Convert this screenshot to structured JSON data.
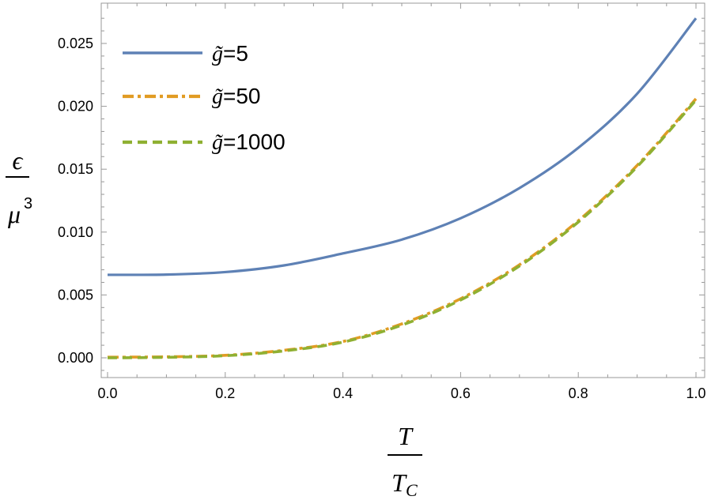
{
  "chart_data": {
    "type": "line",
    "xlabel": {
      "numerator": "T",
      "denominator_main": "T",
      "denominator_sub": "C"
    },
    "ylabel": {
      "numerator": "ϵ",
      "denominator_main": "μ",
      "denominator_sup": "3"
    },
    "xlim": [
      0.0,
      1.0
    ],
    "ylim": [
      -0.0015,
      0.0275
    ],
    "xticks": [
      "0.0",
      "0.2",
      "0.4",
      "0.6",
      "0.8",
      "1.0"
    ],
    "yticks": [
      "0.000",
      "0.005",
      "0.010",
      "0.015",
      "0.020",
      "0.025"
    ],
    "legend_position": "top-left",
    "series": [
      {
        "name_symbol": "g̃",
        "name_value": "=5",
        "color": "#5e81b5",
        "style": "solid",
        "x": [
          0.0,
          0.1,
          0.2,
          0.3,
          0.4,
          0.5,
          0.6,
          0.7,
          0.8,
          0.9,
          1.0
        ],
        "y": [
          0.0066,
          0.00662,
          0.00682,
          0.00735,
          0.0083,
          0.0094,
          0.0111,
          0.0135,
          0.0167,
          0.021,
          0.027
        ]
      },
      {
        "name_symbol": "g̃",
        "name_value": "=50",
        "color": "#e19c24",
        "style": "dashdot",
        "x": [
          0.0,
          0.1,
          0.2,
          0.3,
          0.4,
          0.5,
          0.6,
          0.7,
          0.8,
          0.9,
          1.0
        ],
        "y": [
          5e-05,
          8e-05,
          0.0002,
          0.0006,
          0.0013,
          0.0027,
          0.0047,
          0.0074,
          0.0109,
          0.0153,
          0.0206
        ]
      },
      {
        "name_symbol": "g̃",
        "name_value": "=1000",
        "color": "#8fb032",
        "style": "dashed",
        "x": [
          0.0,
          0.1,
          0.2,
          0.3,
          0.4,
          0.5,
          0.6,
          0.7,
          0.8,
          0.9,
          1.0
        ],
        "y": [
          0.0,
          4e-05,
          0.00017,
          0.00055,
          0.00125,
          0.0026,
          0.0046,
          0.0073,
          0.0108,
          0.0152,
          0.0205
        ]
      }
    ]
  }
}
